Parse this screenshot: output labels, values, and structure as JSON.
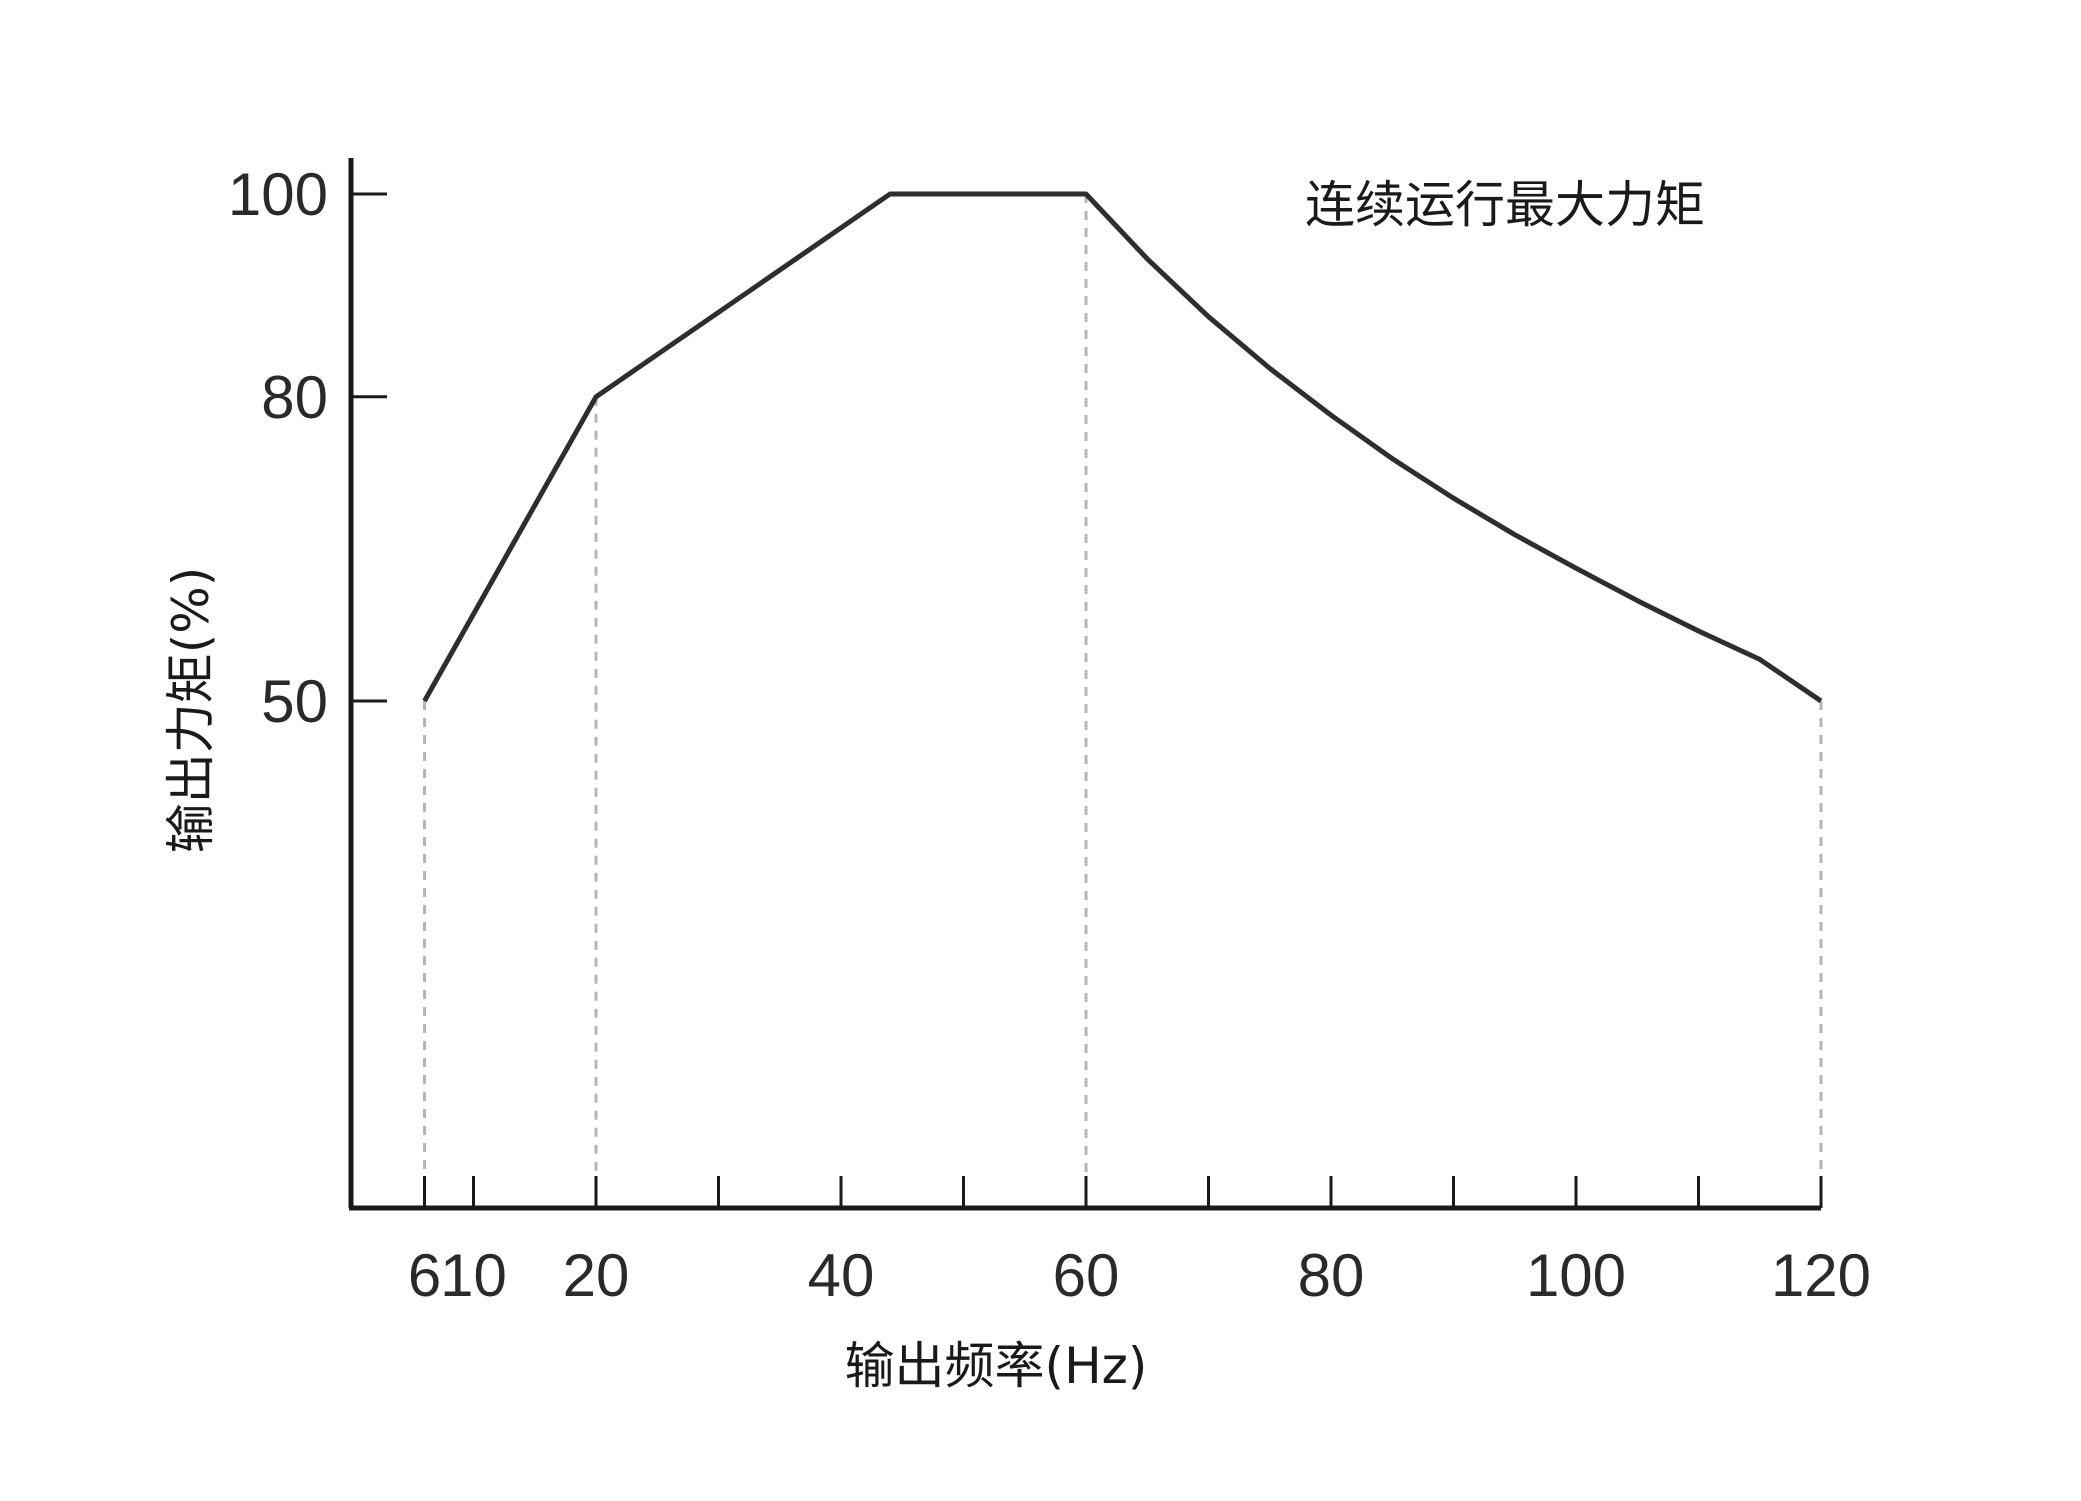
{
  "chart_data": {
    "type": "line",
    "title": "",
    "legend_text": "连续运行最大力矩",
    "xlabel": "输出频率(Hz)",
    "ylabel": "输出力矩(%)",
    "xlim": [
      0,
      120
    ],
    "ylim": [
      0,
      100
    ],
    "x_ticks": [
      6,
      10,
      20,
      30,
      40,
      50,
      60,
      70,
      80,
      90,
      100,
      110,
      120
    ],
    "x_tick_labels": [
      {
        "value": 6,
        "label": "6"
      },
      {
        "value": 10,
        "label": "10"
      },
      {
        "value": 20,
        "label": "20"
      },
      {
        "value": 40,
        "label": "40"
      },
      {
        "value": 60,
        "label": "60"
      },
      {
        "value": 80,
        "label": "80"
      },
      {
        "value": 100,
        "label": "100"
      },
      {
        "value": 120,
        "label": "120"
      }
    ],
    "y_ticks": [
      {
        "value": 50,
        "label": "50"
      },
      {
        "value": 80,
        "label": "80"
      },
      {
        "value": 100,
        "label": "100"
      }
    ],
    "series": [
      {
        "points": [
          [
            6,
            50
          ],
          [
            20,
            80
          ],
          [
            44,
            100
          ],
          [
            60,
            100
          ],
          [
            65,
            93.6
          ],
          [
            70,
            87.9
          ],
          [
            75,
            82.8
          ],
          [
            80,
            78.2
          ],
          [
            85,
            73.9
          ],
          [
            90,
            70
          ],
          [
            95,
            66.4
          ],
          [
            100,
            63.1
          ],
          [
            105,
            59.9
          ],
          [
            110,
            56.9
          ],
          [
            115,
            54.1
          ],
          [
            120,
            50
          ]
        ]
      }
    ],
    "guide_lines": [
      6,
      20,
      60,
      120
    ],
    "grid": false,
    "legend_position": "top-right"
  }
}
